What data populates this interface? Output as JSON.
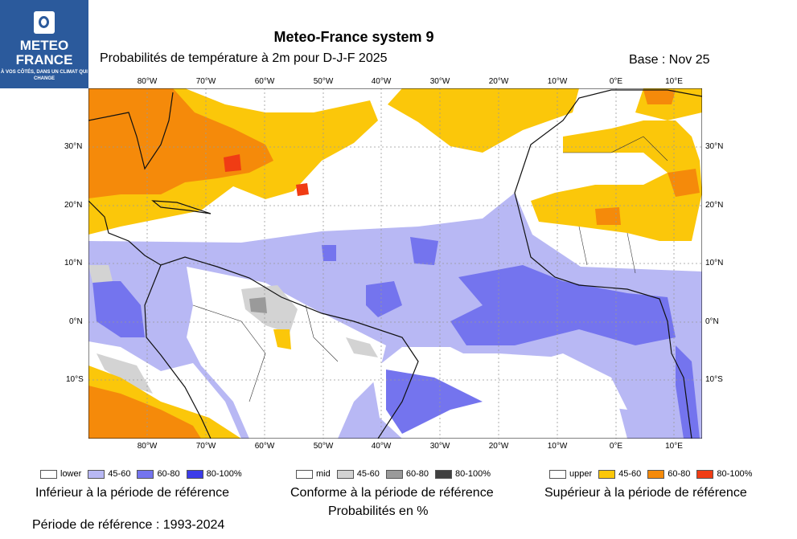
{
  "logo": {
    "line1": "METEO",
    "line2": "FRANCE",
    "tagline": "À VOS CÔTÉS, DANS UN CLIMAT QUI CHANGE"
  },
  "title": "Meteo-France system 9",
  "subtitle": "Probabilités de température à 2m pour D-J-F 2025",
  "base": "Base : Nov 25",
  "map": {
    "lon_labels": [
      "80°W",
      "70°W",
      "60°W",
      "50°W",
      "40°W",
      "30°W",
      "20°W",
      "10°W",
      "0°E",
      "10°E"
    ],
    "lat_labels": [
      "30°N",
      "20°N",
      "10°N",
      "0°N",
      "10°S"
    ],
    "colors": {
      "lower_45_60": "#b8b8f4",
      "lower_60_80": "#7474ee",
      "lower_80_100": "#3c3ce8",
      "mid_45_60": "#d3d3d3",
      "mid_60_80": "#9a9a9a",
      "mid_80_100": "#404040",
      "upper_45_60": "#fbc70a",
      "upper_60_80": "#f58a0a",
      "upper_80_100": "#f03c14"
    }
  },
  "legend": {
    "lower": [
      "lower",
      "45-60",
      "60-80",
      "80-100%"
    ],
    "mid": [
      "mid",
      "45-60",
      "60-80",
      "80-100%"
    ],
    "upper": [
      "upper",
      "45-60",
      "60-80",
      "80-100%"
    ],
    "lower_caption": "Inférieur à la période de référence",
    "mid_caption": "Conforme à la période de référence",
    "upper_caption": "Supérieur à la période de référence",
    "units": "Probabilités en %",
    "reference": "Période de référence : 1993-2024"
  }
}
